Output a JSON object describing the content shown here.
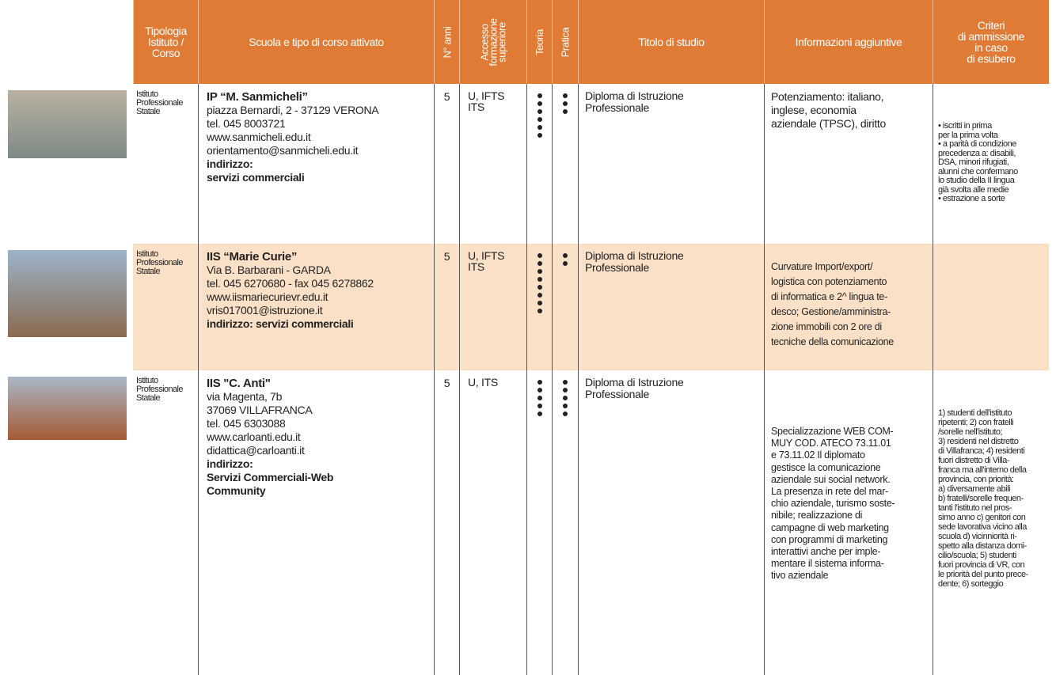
{
  "header": {
    "columns": [
      [
        "Tipologia",
        "Istituto /",
        "Corso"
      ],
      [
        "Scuola e tipo di corso attivato"
      ],
      [
        "N° anni"
      ],
      [
        "Accesso",
        "formazione",
        "superiore"
      ],
      [
        "Teoria"
      ],
      [
        "Pratica"
      ],
      [
        "Titolo di studio"
      ],
      [
        "Informazioni aggiuntive"
      ],
      [
        "Criteri",
        "di ammissione",
        "in caso",
        "di esubero"
      ]
    ]
  },
  "rows": [
    {
      "type": [
        "Istituto",
        "Professionale",
        "Statale"
      ],
      "name": "IP “M. Sanmicheli”",
      "lines": [
        "piazza Bernardi, 2 - 37129 VERONA",
        "tel. 045 8003721",
        "www.sanmicheli.edu.it",
        "orientamento@sanmicheli.edu.it"
      ],
      "course": [
        "indirizzo:",
        "servizi commerciali"
      ],
      "years": "5",
      "access": [
        "U, IFTS",
        "ITS"
      ],
      "theory": 6,
      "practice": 3,
      "title": [
        "Diploma di Istruzione",
        "Professionale"
      ],
      "info": [
        "Potenziamento: italiano,",
        "inglese, economia",
        "aziendale (TPSC), diritto"
      ],
      "criteria": [
        "• iscritti in prima",
        "per la prima volta",
        "• a parità di condizione",
        "precedenza a: disabili,",
        "DSA, minori rifugiati,",
        "alunni che confermano",
        "lo studio della II lingua",
        "già svolta alle medie",
        "• estrazione a sorte"
      ]
    },
    {
      "type": [
        "Istituto",
        "Professionale",
        "Statale"
      ],
      "name": "IIS “Marie Curie”",
      "lines": [
        "Via B. Barbarani - GARDA",
        "tel. 045 6270680 - fax 045 6278862",
        "www.iismariecurievr.edu.it",
        "vris017001@istruzione.it"
      ],
      "course": [
        "indirizzo: servizi commerciali"
      ],
      "years": "5",
      "access": [
        "U, IFTS",
        "ITS"
      ],
      "theory": 8,
      "practice": 2,
      "title": [
        "Diploma di Istruzione",
        "Professionale"
      ],
      "info": [
        "Curvature Import/export/",
        "logistica con potenziamento",
        "di informatica e 2^ lingua te-",
        "desco; Gestione/amministra-",
        "zione immobili con 2 ore di",
        "tecniche della comunicazione"
      ],
      "criteria": []
    },
    {
      "type": [
        "Istituto",
        "Professionale",
        "Statale"
      ],
      "name": "IIS \"C. Anti\"",
      "lines": [
        "via Magenta, 7b",
        "37069 VILLAFRANCA",
        "tel. 045 6303088",
        "www.carloanti.edu.it",
        "didattica@carloanti.it"
      ],
      "course": [
        "indirizzo:",
        "Servizi Commerciali-Web",
        "Community"
      ],
      "years": "5",
      "access": [
        "U, ITS"
      ],
      "theory": 5,
      "practice": 5,
      "title": [
        "Diploma di Istruzione",
        "Professionale"
      ],
      "info": [
        "Specializzazione WEB COM-",
        "MUY COD. ATECO 73.11.01",
        "e 73.11.02 Il diplomato",
        "gestisce la comunicazione",
        "aziendale sui social network.",
        "La presenza in rete del mar-",
        "chio aziendale, turismo soste-",
        "nibile; realizzazione di",
        "campagne di web marketing",
        "con programmi di marketing",
        "interattivi anche per imple-",
        "mentare il sistema informa-",
        "tivo aziendale"
      ],
      "criteria": [
        "1) studenti dell'istituto",
        "ripetenti; 2) con fratelli",
        "/sorelle nell'istituto;",
        "3) residenti nel distretto",
        "di Villafranca; 4) residenti",
        "fuori distretto di Villa-",
        "franca ma all'interno della",
        "provincia, con priorità:",
        "a) diversamente abili",
        "b) fratelli/sorelle frequen-",
        "tanti l'istituto nel pros-",
        "simo anno c) genitori con",
        "sede lavorativa vicino alla",
        "scuola d) vicinniorità ri-",
        "spetto alla distanza domi-",
        "cilio/scuola; 5) studenti",
        "fuori provincia di VR, con",
        "le priorità del punto prece-",
        "dente; 6) sorteggio"
      ]
    }
  ]
}
